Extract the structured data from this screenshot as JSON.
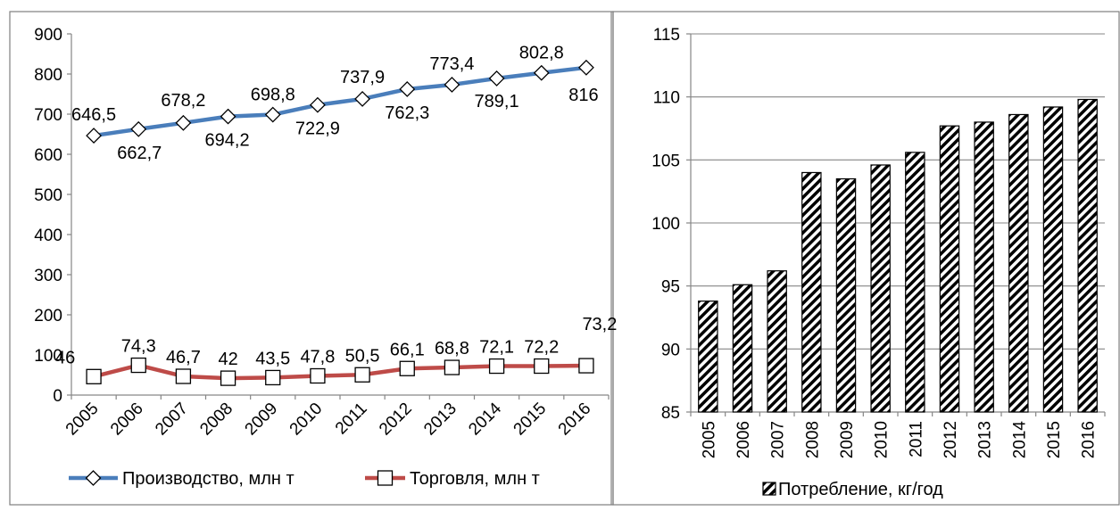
{
  "chart_data": [
    {
      "type": "line",
      "title": "",
      "xlabel": "",
      "ylabel": "",
      "x": [
        "2005",
        "2006",
        "2007",
        "2008",
        "2009",
        "2010",
        "2011",
        "2012",
        "2013",
        "2014",
        "2015",
        "2016"
      ],
      "ylim": [
        0,
        900
      ],
      "yticks": [
        "0",
        "100",
        "200",
        "300",
        "400",
        "500",
        "600",
        "700",
        "800",
        "900"
      ],
      "grid": false,
      "legend_position": "bottom",
      "series": [
        {
          "name": "Производство, млн т",
          "values": [
            646.5,
            662.7,
            678.2,
            694.2,
            698.8,
            722.9,
            737.9,
            762.3,
            773.4,
            789.1,
            802.8,
            816
          ],
          "labels": [
            "646,5",
            "662,7",
            "678,2",
            "694,2",
            "698,8",
            "722,9",
            "737,9",
            "762,3",
            "773,4",
            "789,1",
            "802,8",
            "816"
          ],
          "color": "#4a7ebb",
          "marker": "diamond"
        },
        {
          "name": "Торговля, млн т",
          "values": [
            46,
            74.3,
            46.7,
            42,
            43.5,
            47.8,
            50.5,
            66.1,
            68.8,
            72.1,
            72.2,
            73.2
          ],
          "labels": [
            "46",
            "74,3",
            "46,7",
            "42",
            "43,5",
            "47,8",
            "50,5",
            "66,1",
            "68,8",
            "72,1",
            "72,2",
            "73,2"
          ],
          "color": "#be4b48",
          "marker": "square"
        }
      ]
    },
    {
      "type": "bar",
      "title": "",
      "xlabel": "",
      "ylabel": "",
      "categories": [
        "2005",
        "2006",
        "2007",
        "2008",
        "2009",
        "2010",
        "2011",
        "2012",
        "2013",
        "2014",
        "2015",
        "2016"
      ],
      "values": [
        93.8,
        95.1,
        96.2,
        104.0,
        103.5,
        104.6,
        105.6,
        107.7,
        108.0,
        108.6,
        109.2,
        109.8
      ],
      "ylim": [
        85,
        115
      ],
      "yticks": [
        "85",
        "90",
        "95",
        "100",
        "105",
        "110",
        "115"
      ],
      "grid": true,
      "legend_position": "bottom",
      "series_name": "Потребление, кг/год",
      "pattern": "diagonal-hatch"
    }
  ]
}
